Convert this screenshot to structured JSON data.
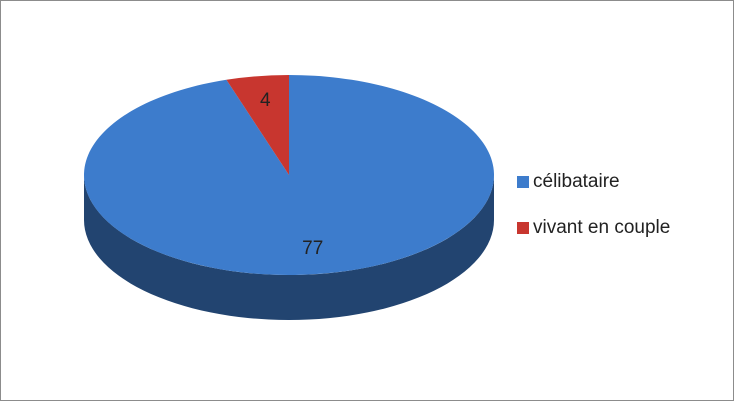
{
  "chart_data": {
    "type": "pie",
    "three_d": true,
    "categories": [
      "célibataire",
      "vivant en couple"
    ],
    "values": [
      77,
      4
    ],
    "colors": [
      "#3d7ccc",
      "#c8362f"
    ],
    "legend": "right"
  }
}
